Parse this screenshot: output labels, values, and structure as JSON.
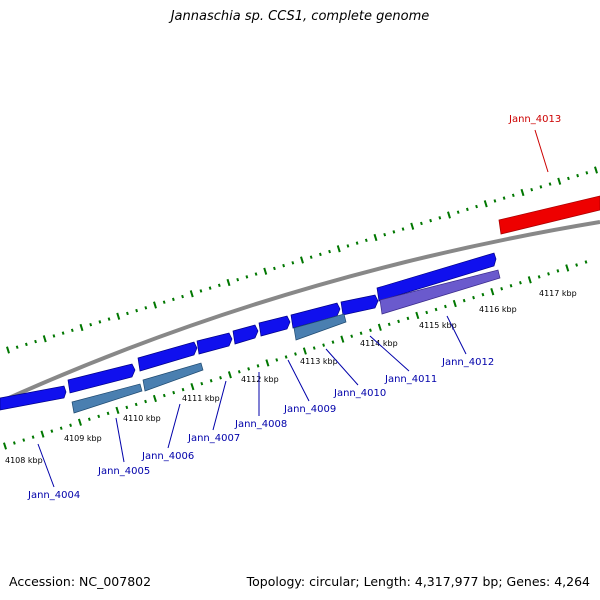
{
  "title": "Jannaschia sp. CCS1, complete genome",
  "footer": {
    "accession": "Accession: NC_007802",
    "topology": "Topology: circular; Length: 4,317,977 bp; Genes: 4,264"
  },
  "colors": {
    "backbone": "#888888",
    "ticks": "#007700",
    "forward_gene": "#1010ee",
    "forward_gene_alt": "#4a7fb0",
    "forward_gene_alt2": "#6a5acd",
    "reverse_gene": "#ee0000",
    "label_forward": "#0000aa",
    "label_reverse": "#cc0000"
  },
  "tick_labels": [
    "4108 kbp",
    "4109 kbp",
    "4110 kbp",
    "4111 kbp",
    "4112 kbp",
    "4113 kbp",
    "4114 kbp",
    "4115 kbp",
    "4116 kbp",
    "4117 kbp"
  ],
  "genes": [
    {
      "name": "Jann_4004",
      "strand": "forward"
    },
    {
      "name": "Jann_4005",
      "strand": "forward"
    },
    {
      "name": "Jann_4006",
      "strand": "forward"
    },
    {
      "name": "Jann_4007",
      "strand": "forward"
    },
    {
      "name": "Jann_4008",
      "strand": "forward"
    },
    {
      "name": "Jann_4009",
      "strand": "forward"
    },
    {
      "name": "Jann_4010",
      "strand": "forward"
    },
    {
      "name": "Jann_4011",
      "strand": "forward"
    },
    {
      "name": "Jann_4012",
      "strand": "forward"
    },
    {
      "name": "Jann_4013",
      "strand": "reverse"
    }
  ]
}
